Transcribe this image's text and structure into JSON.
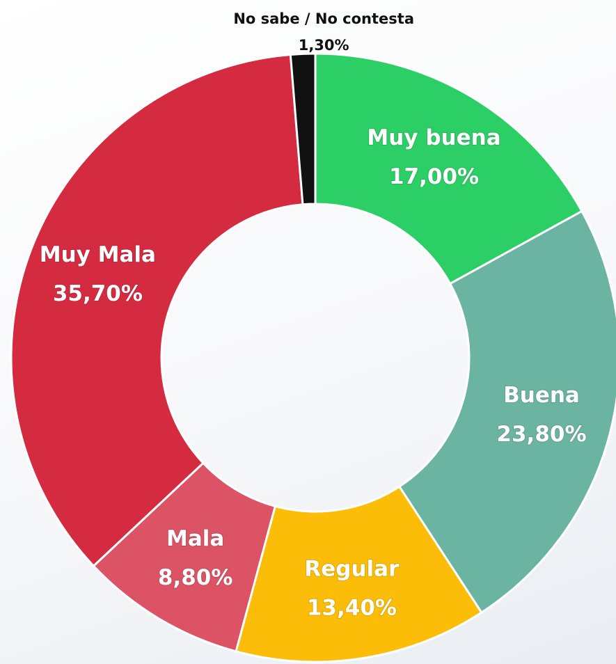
{
  "chart_data": {
    "type": "donut",
    "categories": [
      "Muy buena",
      "Buena",
      "Regular",
      "Mala",
      "Muy Mala",
      "No sabe / No contesta"
    ],
    "values": [
      17.0,
      23.8,
      13.4,
      8.8,
      35.7,
      1.3
    ],
    "value_labels": [
      "17,00%",
      "23,80%",
      "13,40%",
      "8,80%",
      "35,70%",
      "1,30%"
    ],
    "colors": [
      "#2ccf66",
      "#6bb4a1",
      "#fbbd08",
      "#dc5365",
      "#d42b40",
      "#111111"
    ]
  }
}
